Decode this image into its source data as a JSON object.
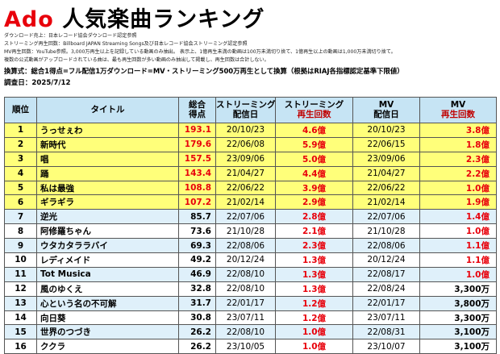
{
  "title": {
    "brand": "Ado",
    "main": "人気楽曲ランキング"
  },
  "notes": [
    "ダウンロード売上：日本レコード協会ダウンロード認定参照",
    "ストリーミング再生回数：Billboard JAPAN Streaming Songs及び日本レコード協会ストリーミング認定参照",
    "MV再生回数：YouTube参照。3,000万再生以上を記録している動画のみ抽出。 表示上、1億再生未満の動画は100万未満切り捨て、1億再生以上の動画は1,000万未満切り捨て。",
    "複数の公式動画がアップロードされている曲は、最も再生回数が多い動画のみ抽出して掲載し、再生回数は合計しない。"
  ],
  "formula": "換算式：総合1得点=フル配信1万ダウンロード=MV・ストリーミング500万再生として換算（根拠はRIAJ各指標認定基準下限値）",
  "survey": "調査日：2025/7/12",
  "headers": {
    "rank": "順位",
    "title": "タイトル",
    "score_1": "総合",
    "score_2": "得点",
    "st_date_1": "ストリーミング",
    "st_date_2": "配信日",
    "st_plays_1": "ストリーミング",
    "st_plays_2": "再生回数",
    "mv_date_1": "MV",
    "mv_date_2": "配信日",
    "mv_plays_1": "MV",
    "mv_plays_2": "再生回数"
  },
  "rows": [
    {
      "rank": "1",
      "title": "うっせぇわ",
      "score": "193.1",
      "st_date": "20/10/23",
      "st_plays": "4.6億",
      "mv_date": "20/10/23",
      "mv_plays": "3.8億"
    },
    {
      "rank": "2",
      "title": "新時代",
      "score": "179.6",
      "st_date": "22/06/08",
      "st_plays": "5.9億",
      "mv_date": "22/06/15",
      "mv_plays": "1.8億"
    },
    {
      "rank": "3",
      "title": "唱",
      "score": "157.5",
      "st_date": "23/09/06",
      "st_plays": "5.0億",
      "mv_date": "23/09/06",
      "mv_plays": "2.3億"
    },
    {
      "rank": "4",
      "title": "踊",
      "score": "143.4",
      "st_date": "21/04/27",
      "st_plays": "4.4億",
      "mv_date": "21/04/27",
      "mv_plays": "2.2億"
    },
    {
      "rank": "5",
      "title": "私は最強",
      "score": "108.8",
      "st_date": "22/06/22",
      "st_plays": "3.9億",
      "mv_date": "22/06/22",
      "mv_plays": "1.0億"
    },
    {
      "rank": "6",
      "title": "ギラギラ",
      "score": "107.2",
      "st_date": "21/02/14",
      "st_plays": "2.9億",
      "mv_date": "21/02/14",
      "mv_plays": "1.9億"
    },
    {
      "rank": "7",
      "title": "逆光",
      "score": "85.7",
      "st_date": "22/07/06",
      "st_plays": "2.8億",
      "mv_date": "22/07/06",
      "mv_plays": "1.4億"
    },
    {
      "rank": "8",
      "title": "阿修羅ちゃん",
      "score": "73.6",
      "st_date": "21/10/28",
      "st_plays": "2.1億",
      "mv_date": "21/10/28",
      "mv_plays": "1.0億"
    },
    {
      "rank": "9",
      "title": "ウタカタララバイ",
      "score": "69.3",
      "st_date": "22/08/06",
      "st_plays": "2.3億",
      "mv_date": "22/08/06",
      "mv_plays": "1.1億"
    },
    {
      "rank": "10",
      "title": "レディメイド",
      "score": "49.2",
      "st_date": "20/12/24",
      "st_plays": "1.3億",
      "mv_date": "20/12/24",
      "mv_plays": "1.1億"
    },
    {
      "rank": "11",
      "title": "Tot Musica",
      "score": "46.9",
      "st_date": "22/08/10",
      "st_plays": "1.3億",
      "mv_date": "22/08/17",
      "mv_plays": "1.0億"
    },
    {
      "rank": "12",
      "title": "風のゆくえ",
      "score": "32.8",
      "st_date": "22/08/10",
      "st_plays": "1.3億",
      "mv_date": "22/08/24",
      "mv_plays": "3,300万"
    },
    {
      "rank": "13",
      "title": "心という名の不可解",
      "score": "31.7",
      "st_date": "22/01/17",
      "st_plays": "1.2億",
      "mv_date": "22/01/17",
      "mv_plays": "3,800万"
    },
    {
      "rank": "14",
      "title": "向日葵",
      "score": "30.8",
      "st_date": "23/07/11",
      "st_plays": "1.2億",
      "mv_date": "23/07/11",
      "mv_plays": "3,300万"
    },
    {
      "rank": "15",
      "title": "世界のつづき",
      "score": "26.2",
      "st_date": "22/08/10",
      "st_plays": "1.0億",
      "mv_date": "22/08/31",
      "mv_plays": "3,100万"
    },
    {
      "rank": "16",
      "title": "ククラ",
      "score": "26.2",
      "st_date": "23/10/05",
      "st_plays": "1.0億",
      "mv_date": "23/10/07",
      "mv_plays": "3,100万"
    }
  ],
  "colors": {
    "accent_red": "#e8000b",
    "header_bg": "#c6e4f4",
    "highlight_yellow": "#ffff7a",
    "alt_row": "#dff0fa"
  }
}
